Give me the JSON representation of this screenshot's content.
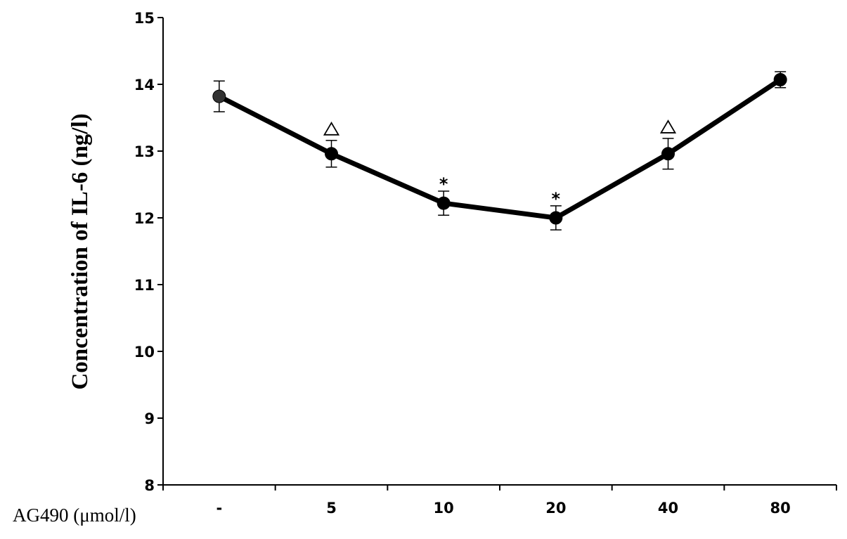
{
  "chart_data": {
    "type": "line",
    "title": "",
    "xlabel": "AG490 (μmol/l)",
    "ylabel": "Concentration of IL-6 (ng/l)",
    "ylim": [
      8,
      15
    ],
    "yticks": [
      8,
      9,
      10,
      11,
      12,
      13,
      14,
      15
    ],
    "categories": [
      "-",
      "5",
      "10",
      "20",
      "40",
      "80"
    ],
    "series": [
      {
        "values": [
          13.82,
          12.96,
          12.22,
          12.0,
          12.96,
          14.07
        ],
        "errors": [
          0.23,
          0.2,
          0.18,
          0.18,
          0.23,
          0.12
        ]
      }
    ],
    "annotations": [
      {
        "category": "5",
        "marker": "triangle"
      },
      {
        "category": "10",
        "marker": "asterisk",
        "text": "*"
      },
      {
        "category": "20",
        "marker": "asterisk",
        "text": "*"
      },
      {
        "category": "40",
        "marker": "triangle"
      }
    ],
    "grid": false,
    "legend": "none",
    "line_color": "#000000"
  }
}
